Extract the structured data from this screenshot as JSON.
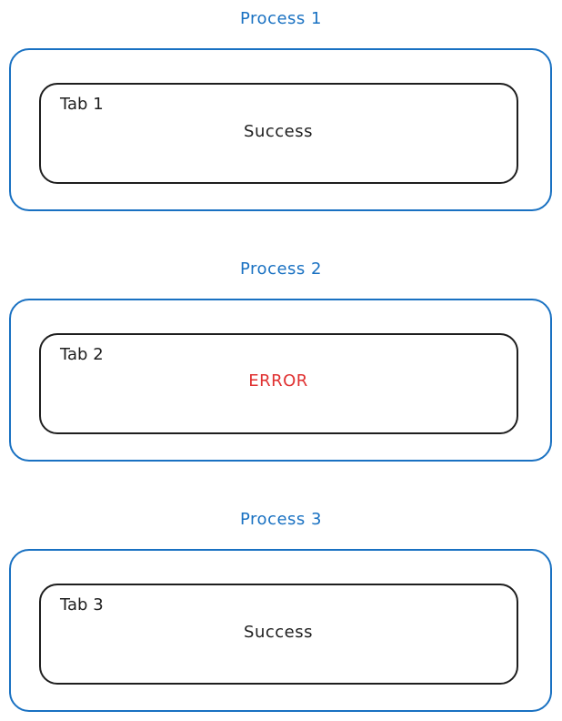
{
  "colors": {
    "process_title": "#1971c2",
    "outer_border": "#1971c2",
    "inner_border": "#1e1e1e",
    "text_default": "#1e1e1e",
    "status_success": "#1e1e1e",
    "status_error": "#e03131"
  },
  "processes": [
    {
      "title": "Process 1",
      "tab": "Tab 1",
      "status": "Success",
      "state": "success"
    },
    {
      "title": "Process 2",
      "tab": "Tab 2",
      "status": "ERROR",
      "state": "error"
    },
    {
      "title": "Process 3",
      "tab": "Tab 3",
      "status": "Success",
      "state": "success"
    }
  ]
}
